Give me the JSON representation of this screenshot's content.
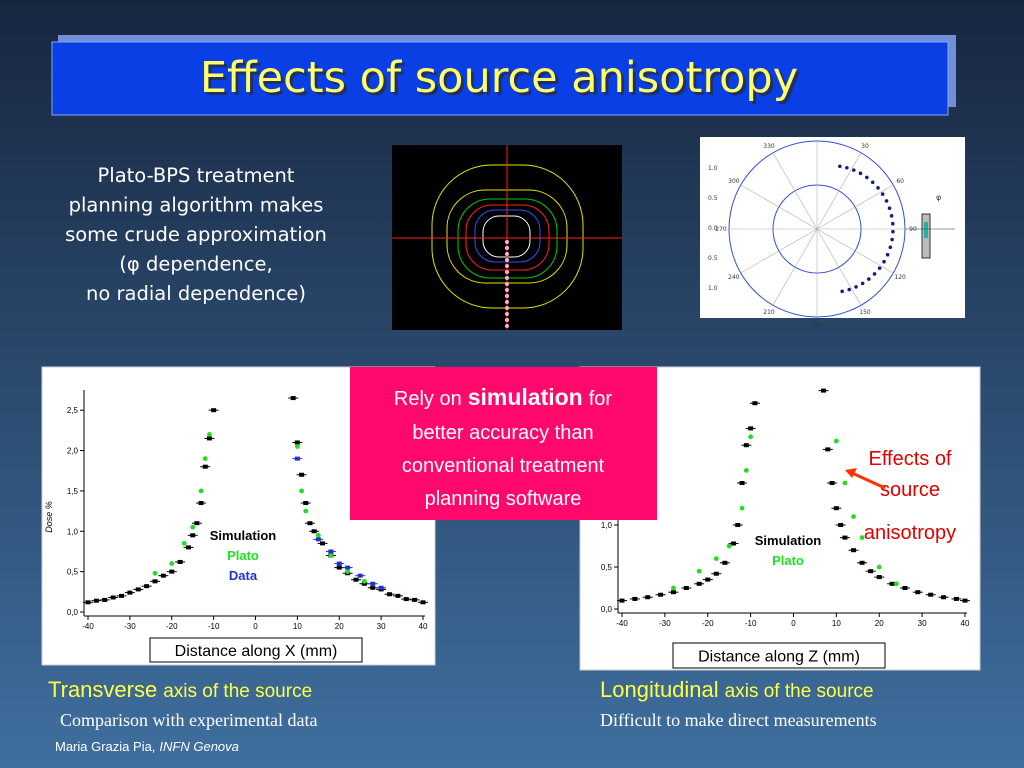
{
  "title": "Effects of source anisotropy",
  "intro_lines": [
    "Plato-BPS treatment",
    "planning algorithm makes",
    "some crude approximation",
    "(φ dependence,",
    "no radial dependence)"
  ],
  "polar_plot": {
    "angle_labels": [
      "0",
      "30",
      "60",
      "90",
      "120",
      "150",
      "180",
      "210",
      "240",
      "270",
      "300",
      "330"
    ],
    "radial_labels": [
      "1.0",
      "0.5",
      "0.0",
      "0.5",
      "1.0"
    ],
    "phi_label": "φ"
  },
  "callout": {
    "before": "Rely on",
    "emphasis": "simulation",
    "after": "for",
    "lines": [
      "better accuracy than",
      "conventional treatment",
      "planning software"
    ]
  },
  "chart_data": [
    {
      "type": "scatter",
      "x_label": "Distance along X (mm)",
      "y_label": "Dose %",
      "xlim": [
        -40,
        40
      ],
      "xticks": [
        -40,
        -30,
        -20,
        -10,
        0,
        10,
        20,
        30,
        40
      ],
      "ylim": [
        0,
        2.75
      ],
      "yticks": [
        {
          "value": 0,
          "label": "0,0"
        },
        {
          "value": 0.5,
          "label": "0,5"
        },
        {
          "value": 1,
          "label": "1,0"
        },
        {
          "value": 1.5,
          "label": "1,5"
        },
        {
          "value": 2,
          "label": "2,0"
        },
        {
          "value": 2.5,
          "label": "2,5"
        }
      ],
      "series": [
        {
          "name": "Simulation",
          "color": "#000000",
          "x": [
            -40,
            -38,
            -36,
            -34,
            -32,
            -30,
            -28,
            -26,
            -24,
            -22,
            -20,
            -18,
            -16,
            -15,
            -14,
            -13,
            -12,
            -11,
            -10,
            9,
            10,
            11,
            12,
            13,
            14,
            16,
            18,
            20,
            22,
            24,
            26,
            28,
            30,
            32,
            34,
            36,
            38,
            40
          ],
          "values": [
            0.12,
            0.14,
            0.15,
            0.18,
            0.2,
            0.24,
            0.28,
            0.32,
            0.38,
            0.45,
            0.5,
            0.62,
            0.8,
            0.95,
            1.1,
            1.35,
            1.8,
            2.15,
            2.5,
            2.65,
            2.1,
            1.7,
            1.35,
            1.1,
            1.0,
            0.85,
            0.7,
            0.55,
            0.48,
            0.4,
            0.35,
            0.3,
            0.28,
            0.22,
            0.2,
            0.16,
            0.15,
            0.12
          ]
        },
        {
          "name": "Plato",
          "color": "#22dd22",
          "x": [
            -24,
            -20,
            -17,
            -15,
            -13,
            -12,
            -11,
            10,
            11,
            12,
            15,
            18,
            22,
            26
          ],
          "values": [
            0.48,
            0.6,
            0.85,
            1.05,
            1.5,
            1.9,
            2.2,
            2.05,
            1.5,
            1.25,
            0.95,
            0.7,
            0.5,
            0.38
          ]
        },
        {
          "name": "Data",
          "color": "#2233cc",
          "x": [
            10,
            15,
            18,
            20,
            22,
            25,
            28,
            30
          ],
          "values": [
            1.9,
            0.9,
            0.75,
            0.6,
            0.55,
            0.45,
            0.35,
            0.3
          ]
        }
      ]
    },
    {
      "type": "scatter",
      "x_label": "Distance along Z (mm)",
      "xlim": [
        -40,
        40
      ],
      "xticks": [
        -40,
        -30,
        -20,
        -10,
        0,
        10,
        20,
        30,
        40
      ],
      "ylim": [
        0,
        2.75
      ],
      "yticks": [
        {
          "value": 0,
          "label": "0,0"
        },
        {
          "value": 0.5,
          "label": "0,5"
        },
        {
          "value": 1,
          "label": "1,0"
        }
      ],
      "annotation": [
        "Effects of",
        "source",
        "anisotropy"
      ],
      "series": [
        {
          "name": "Simulation",
          "color": "#000000",
          "x": [
            -40,
            -37,
            -34,
            -31,
            -28,
            -25,
            -22,
            -20,
            -18,
            -16,
            -14,
            -13,
            -12,
            -11,
            -10,
            -9,
            7,
            8,
            9,
            10,
            11,
            12,
            14,
            16,
            18,
            20,
            23,
            26,
            29,
            32,
            35,
            38,
            40
          ],
          "values": [
            0.1,
            0.12,
            0.14,
            0.17,
            0.2,
            0.25,
            0.3,
            0.35,
            0.42,
            0.55,
            0.78,
            1.0,
            1.5,
            1.95,
            2.15,
            2.45,
            2.6,
            1.9,
            1.5,
            1.2,
            1.0,
            0.85,
            0.7,
            0.55,
            0.45,
            0.38,
            0.3,
            0.25,
            0.2,
            0.17,
            0.14,
            0.12,
            0.1
          ]
        },
        {
          "name": "Plato",
          "color": "#22dd22",
          "x": [
            -28,
            -22,
            -18,
            -15,
            -12,
            -11,
            -10,
            10,
            12,
            14,
            16,
            20,
            24
          ],
          "values": [
            0.25,
            0.45,
            0.6,
            0.75,
            1.2,
            1.65,
            2.05,
            2.0,
            1.5,
            1.1,
            0.85,
            0.5,
            0.3
          ]
        }
      ]
    }
  ],
  "captions": [
    {
      "lead": "Transverse",
      "rest": "axis of the source",
      "note": "Comparison with experimental data"
    },
    {
      "lead": "Longitudinal",
      "rest": "axis of the source",
      "note": "Difficult to make direct measurements"
    }
  ],
  "footer": {
    "name": "Maria Grazia Pia,",
    "org": "INFN Genova"
  }
}
